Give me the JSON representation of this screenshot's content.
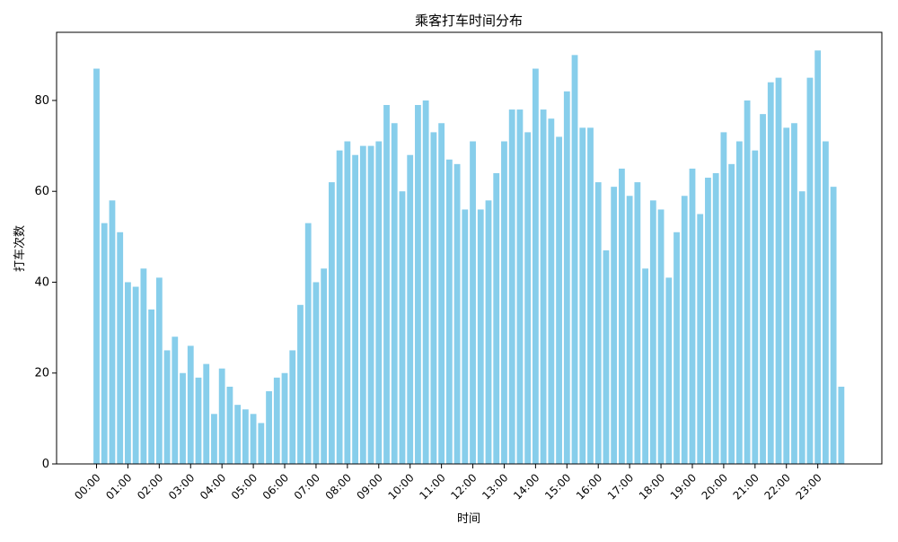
{
  "chart_data": {
    "type": "bar",
    "title": "乘客打车时间分布",
    "xlabel": "时间",
    "ylabel": "打车次数",
    "ylim": [
      0,
      95
    ],
    "yticks": [
      0,
      20,
      40,
      60,
      80
    ],
    "grid": false,
    "bar_color": "#87ceeb",
    "xtick_labels": [
      "00:00",
      "01:00",
      "02:00",
      "03:00",
      "04:00",
      "05:00",
      "06:00",
      "07:00",
      "08:00",
      "09:00",
      "10:00",
      "11:00",
      "12:00",
      "13:00",
      "14:00",
      "15:00",
      "16:00",
      "17:00",
      "18:00",
      "19:00",
      "20:00",
      "21:00",
      "22:00",
      "23:00"
    ],
    "bins_per_hour": 4,
    "values": [
      87,
      53,
      58,
      51,
      40,
      39,
      43,
      34,
      41,
      25,
      28,
      20,
      26,
      19,
      22,
      11,
      21,
      17,
      13,
      12,
      11,
      9,
      16,
      19,
      20,
      25,
      35,
      53,
      40,
      43,
      62,
      69,
      71,
      68,
      70,
      70,
      71,
      79,
      75,
      60,
      68,
      79,
      80,
      73,
      75,
      67,
      66,
      56,
      71,
      56,
      58,
      64,
      71,
      78,
      78,
      73,
      87,
      78,
      76,
      72,
      82,
      90,
      74,
      74,
      62,
      47,
      61,
      65,
      59,
      62,
      43,
      58,
      56,
      41,
      51,
      59,
      65,
      55,
      63,
      64,
      73,
      66,
      71,
      80,
      69,
      77,
      84,
      85,
      74,
      75,
      60,
      85,
      91,
      71,
      61,
      17
    ]
  }
}
